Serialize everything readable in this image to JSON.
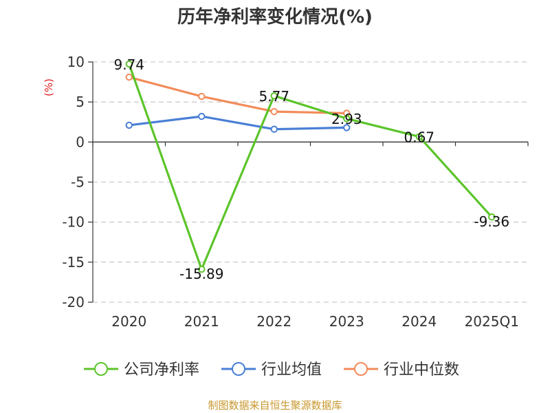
{
  "chart_data": {
    "type": "line",
    "title": "历年净利率变化情况(%)",
    "y_unit": "(%)",
    "categories": [
      "2020",
      "2021",
      "2022",
      "2023",
      "2024",
      "2025Q1"
    ],
    "ylim": [
      -20,
      10
    ],
    "yticks": [
      10,
      5,
      0,
      -5,
      -10,
      -15,
      -20
    ],
    "grid": "horizontal-dashed",
    "legend_position": "bottom",
    "series": [
      {
        "name": "公司净利率",
        "color": "#5cc42a",
        "values": [
          9.74,
          -15.89,
          5.77,
          2.93,
          0.67,
          -9.36
        ],
        "labels": [
          "9.74",
          "-15.89",
          "5.77",
          "2.93",
          "0.67",
          "-9.36"
        ]
      },
      {
        "name": "行业均值",
        "color": "#4a7fd6",
        "values": [
          2.1,
          3.2,
          1.6,
          1.8,
          null,
          null
        ]
      },
      {
        "name": "行业中位数",
        "color": "#f28c5a",
        "values": [
          8.1,
          5.7,
          3.8,
          3.6,
          null,
          null
        ]
      }
    ]
  },
  "source": "制图数据来自恒生聚源数据库"
}
